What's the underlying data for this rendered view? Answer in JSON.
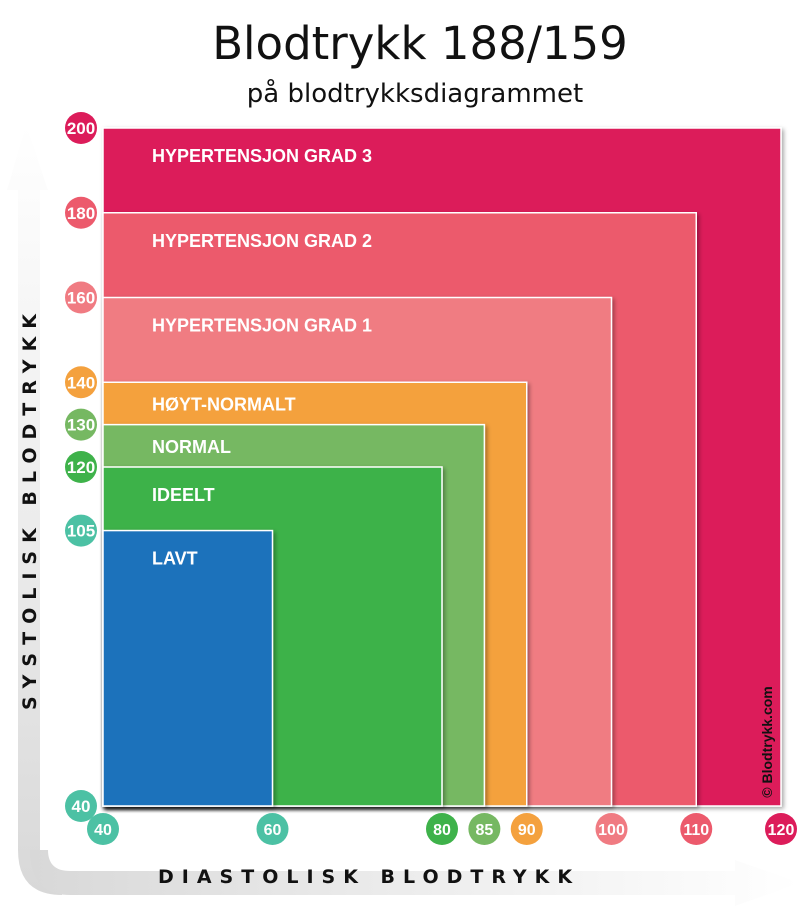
{
  "title": "Blodtrykk 188/159",
  "subtitle": "på blodtrykksdiagrammet",
  "credit": "© Blodtrykk.com",
  "chart_data": {
    "type": "area",
    "xlabel": "DIASTOLISK BLODTRYKK",
    "ylabel": "SYSTOLISK BLODTRYKK",
    "xlim": [
      40,
      120
    ],
    "ylim": [
      40,
      200
    ],
    "categories": [
      {
        "label": "HYPERTENSJON GRAD 3",
        "systolic_max": 200,
        "diastolic_max": 120,
        "color": "#dc1c5a"
      },
      {
        "label": "HYPERTENSJON GRAD 2",
        "systolic_max": 180,
        "diastolic_max": 110,
        "color": "#ec5a6c"
      },
      {
        "label": "HYPERTENSJON GRAD 1",
        "systolic_max": 160,
        "diastolic_max": 100,
        "color": "#f07b82"
      },
      {
        "label": "HØYT-NORMALT",
        "systolic_max": 140,
        "diastolic_max": 90,
        "color": "#f4a13e"
      },
      {
        "label": "NORMAL",
        "systolic_max": 130,
        "diastolic_max": 85,
        "color": "#76b862"
      },
      {
        "label": "IDEELT",
        "systolic_max": 120,
        "diastolic_max": 80,
        "color": "#3eb24a"
      },
      {
        "label": "LAVT",
        "systolic_max": 105,
        "diastolic_max": 60,
        "color": "#1f72bb"
      }
    ],
    "y_ticks": [
      {
        "value": 200,
        "color": "#dc1c5a"
      },
      {
        "value": 180,
        "color": "#ec5a6c"
      },
      {
        "value": 160,
        "color": "#f07b82"
      },
      {
        "value": 140,
        "color": "#f4a13e"
      },
      {
        "value": 130,
        "color": "#76b862"
      },
      {
        "value": 120,
        "color": "#3eb24a"
      },
      {
        "value": 105,
        "color": "#4cc1a4"
      },
      {
        "value": 40,
        "color": "#4cc1a4"
      }
    ],
    "x_ticks": [
      {
        "value": 40,
        "color": "#4cc1a4"
      },
      {
        "value": 60,
        "color": "#4cc1a4"
      },
      {
        "value": 80,
        "color": "#3eb24a"
      },
      {
        "value": 85,
        "color": "#76b862"
      },
      {
        "value": 90,
        "color": "#f4a13e"
      },
      {
        "value": 100,
        "color": "#f07b82"
      },
      {
        "value": 110,
        "color": "#ec5a6c"
      },
      {
        "value": 120,
        "color": "#dc1c5a"
      }
    ]
  }
}
